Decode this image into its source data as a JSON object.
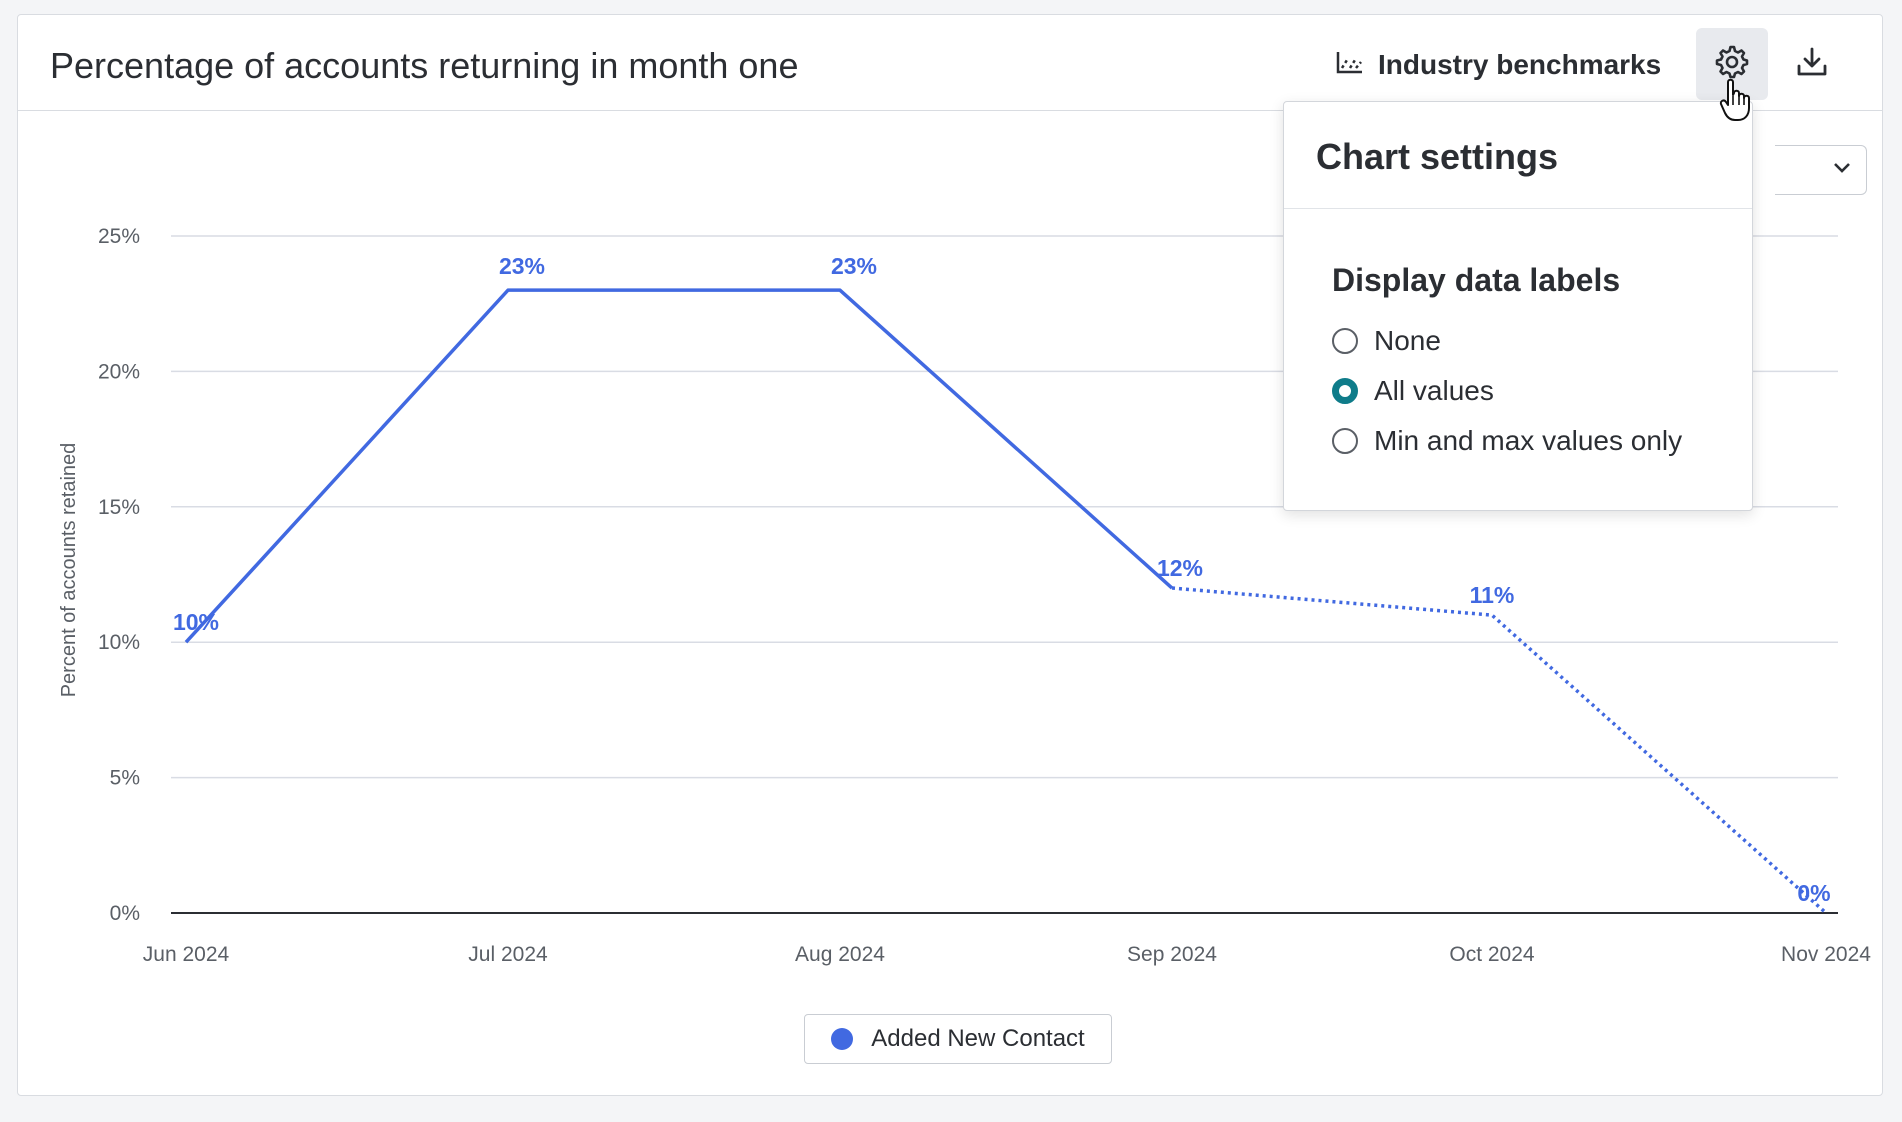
{
  "header": {
    "title": "Percentage of accounts returning in month one",
    "benchmarks_label": "Industry benchmarks",
    "benchmarks_icon": "line-chart-icon",
    "settings_icon": "gear-icon",
    "download_icon": "download-icon"
  },
  "settings_popover": {
    "title": "Chart settings",
    "section_label": "Display data labels",
    "options": [
      {
        "label": "None",
        "checked": false
      },
      {
        "label": "All values",
        "checked": true
      },
      {
        "label": "Min and max values only",
        "checked": false
      }
    ]
  },
  "colors": {
    "series": "#4169e1",
    "radio_checked": "#0f7c8a"
  },
  "chart_data": {
    "type": "line",
    "title": "",
    "xlabel": "",
    "ylabel": "Percent of accounts retained",
    "categories": [
      "Jun 2024",
      "Jul 2024",
      "Aug 2024",
      "Sep 2024",
      "Oct 2024",
      "Nov 2024"
    ],
    "yticks": [
      "0%",
      "5%",
      "10%",
      "15%",
      "20%",
      "25%"
    ],
    "ylim": [
      0,
      25
    ],
    "grid": true,
    "legend_placement": "bottom-center",
    "series": [
      {
        "name": "Added New Contact",
        "values": [
          10,
          23,
          23,
          12,
          11,
          0
        ],
        "data_labels": [
          "10%",
          "23%",
          "23%",
          "12%",
          "11%",
          "0%"
        ],
        "solid_through_index": 3,
        "dotted_after_index": 3
      }
    ]
  }
}
